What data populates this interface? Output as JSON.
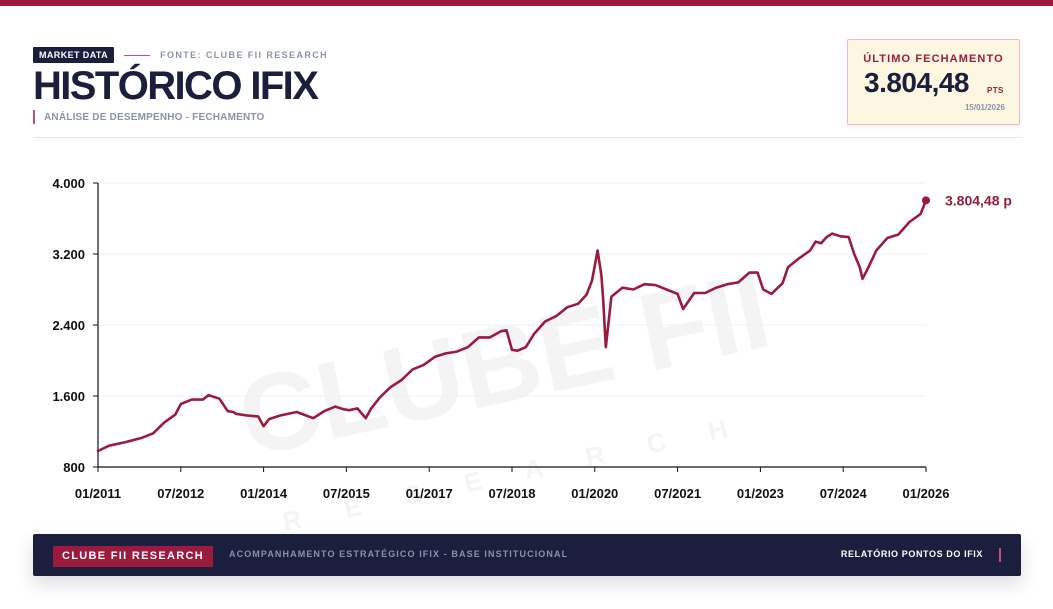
{
  "header": {
    "badge": "MARKET DATA",
    "source": "FONTE: CLUBE FII RESEARCH",
    "title": "HISTÓRICO IFIX",
    "subtitle": "ANÁLISE DE DESEMPENHO - FECHAMENTO"
  },
  "card": {
    "label": "ÚLTIMO FECHAMENTO",
    "value": "3.804,48",
    "unit": "PTS",
    "date": "15/01/2026"
  },
  "watermark": {
    "main": "CLUBE FII",
    "sub": "RESEARCH"
  },
  "footer": {
    "brand": "CLUBE FII RESEARCH",
    "description": "ACOMPANHAMENTO ESTRATÉGICO IFIX - BASE INSTITUCIONAL",
    "right": "RELATÓRIO PONTOS DO IFIX"
  },
  "colors": {
    "line": "#9b1b3f",
    "navy": "#1b1e3d",
    "grid": "#eef0f4"
  },
  "chart_data": {
    "type": "line",
    "title": "HISTÓRICO IFIX",
    "xlabel": "",
    "ylabel": "",
    "xlim": [
      2011.0,
      2026.0
    ],
    "ylim": [
      800,
      4000
    ],
    "yticks": [
      800,
      1600,
      2400,
      3200,
      4000
    ],
    "ytick_labels": [
      "800",
      "1.600",
      "2.400",
      "3.200",
      "4.000"
    ],
    "xticks": [
      2011.0,
      2012.5,
      2014.0,
      2015.5,
      2017.0,
      2018.5,
      2020.0,
      2021.5,
      2023.0,
      2024.5,
      2026.0
    ],
    "xtick_labels": [
      "01/2011",
      "07/2012",
      "01/2014",
      "07/2015",
      "01/2017",
      "07/2018",
      "01/2020",
      "07/2021",
      "01/2023",
      "07/2024",
      "01/2026"
    ],
    "grid": true,
    "last_label": "3.804,48 p",
    "series": [
      {
        "x": [
          2011.0,
          2011.2,
          2011.5,
          2011.8,
          2012.0,
          2012.2,
          2012.4,
          2012.5,
          2012.7,
          2012.9,
          2013.0,
          2013.2,
          2013.35,
          2013.45,
          2013.5,
          2013.7,
          2013.9,
          2014.0,
          2014.05,
          2014.1,
          2014.3,
          2014.6,
          2014.9,
          2015.0,
          2015.1,
          2015.3,
          2015.45,
          2015.55,
          2015.7,
          2015.85,
          2015.95,
          2016.0,
          2016.1,
          2016.3,
          2016.5,
          2016.7,
          2016.9,
          2017.1,
          2017.3,
          2017.5,
          2017.7,
          2017.9,
          2018.1,
          2018.3,
          2018.4,
          2018.5,
          2018.6,
          2018.75,
          2018.9,
          2019.1,
          2019.3,
          2019.5,
          2019.7,
          2019.85,
          2019.95,
          2020.05,
          2020.12,
          2020.15,
          2020.2,
          2020.3,
          2020.5,
          2020.7,
          2020.9,
          2021.1,
          2021.3,
          2021.5,
          2021.6,
          2021.8,
          2021.9,
          2022.0,
          2022.2,
          2022.4,
          2022.6,
          2022.8,
          2022.95,
          2023.05,
          2023.2,
          2023.4,
          2023.5,
          2023.7,
          2023.9,
          2024.0,
          2024.1,
          2024.2,
          2024.3,
          2024.45,
          2024.6,
          2024.7,
          2024.8,
          2024.85,
          2024.95,
          2025.1,
          2025.3,
          2025.5,
          2025.7,
          2025.9,
          2026.0
        ],
        "values": [
          980,
          1040,
          1080,
          1130,
          1180,
          1300,
          1390,
          1510,
          1560,
          1560,
          1610,
          1570,
          1430,
          1420,
          1400,
          1380,
          1370,
          1260,
          1300,
          1340,
          1380,
          1420,
          1350,
          1390,
          1430,
          1480,
          1450,
          1440,
          1460,
          1350,
          1460,
          1500,
          1580,
          1700,
          1780,
          1900,
          1950,
          2040,
          2080,
          2100,
          2150,
          2260,
          2260,
          2330,
          2340,
          2120,
          2110,
          2150,
          2300,
          2440,
          2500,
          2600,
          2640,
          2740,
          2900,
          3240,
          2960,
          2700,
          2150,
          2720,
          2820,
          2800,
          2860,
          2850,
          2800,
          2750,
          2580,
          2760,
          2760,
          2760,
          2820,
          2860,
          2880,
          2990,
          2990,
          2800,
          2750,
          2870,
          3050,
          3150,
          3240,
          3340,
          3320,
          3390,
          3430,
          3400,
          3390,
          3200,
          3050,
          2920,
          3040,
          3240,
          3380,
          3420,
          3560,
          3650,
          3804.48
        ]
      }
    ]
  }
}
